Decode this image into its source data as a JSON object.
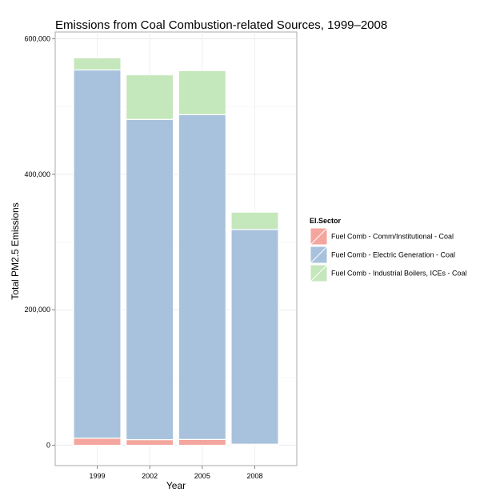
{
  "chart_data": {
    "type": "bar",
    "stacked": true,
    "title": "Emissions from Coal Combustion-related Sources, 1999–2008",
    "xlabel": "Year",
    "ylabel": "Total PM2.5 Emissions",
    "categories": [
      "1999",
      "2002",
      "2005",
      "2008"
    ],
    "ylim": [
      -30000,
      610000
    ],
    "yticks": [
      0,
      200000,
      400000,
      600000
    ],
    "ytick_labels": [
      "0",
      "200,000",
      "400,000",
      "600,000"
    ],
    "grid": true,
    "legend": {
      "title": "EI.Sector",
      "position": "right"
    },
    "series": [
      {
        "name": "Fuel Comb - Comm/Institutional - Coal",
        "color": "#f4a59d",
        "values": [
          10500,
          8300,
          8600,
          1600
        ]
      },
      {
        "name": "Fuel Comb - Electric Generation - Coal",
        "color": "#a8c2dd",
        "values": [
          543500,
          472700,
          479400,
          317000
        ]
      },
      {
        "name": "Fuel Comb - Industrial Boilers, ICEs - Coal",
        "color": "#c4e7bb",
        "values": [
          18000,
          65800,
          65000,
          25500
        ]
      }
    ]
  }
}
